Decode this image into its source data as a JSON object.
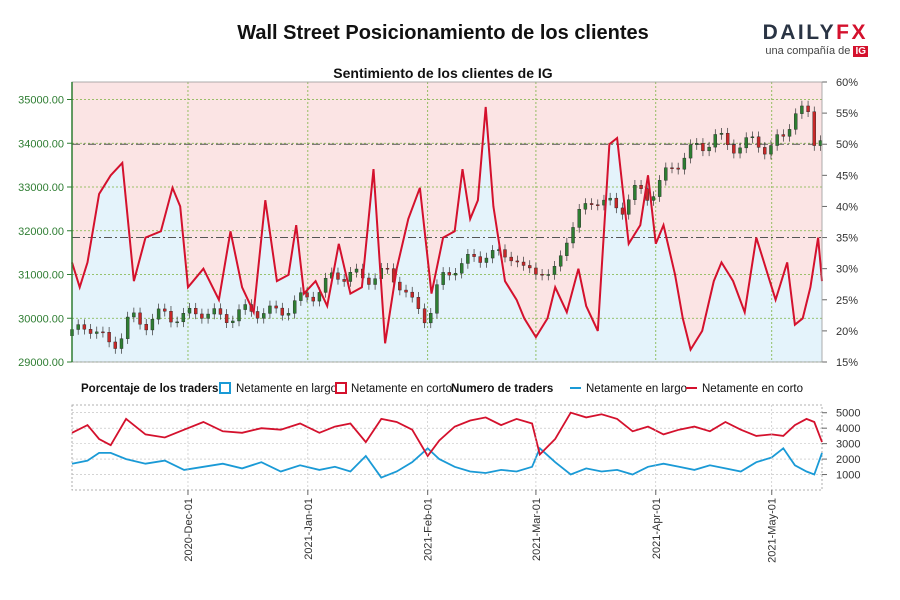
{
  "header": {
    "title": "Wall Street Posicionamiento de los clientes",
    "logo_main": "DAILY",
    "logo_fx": "FX",
    "logo_sub": "una compañía de",
    "logo_badge": "IG"
  },
  "colors": {
    "long_fill": "#e4f3fb",
    "short_fill": "#fbe4e4",
    "long_line": "#1a9ad6",
    "short_line": "#d4112d",
    "candle_up": "#2e7d32",
    "candle_down": "#c62828",
    "grid": "#7cb342",
    "axis_left": "#2e7d32",
    "price_ref": "#555555"
  },
  "chart_data": [
    {
      "type": "area",
      "title": "Sentimiento de los clientes de IG",
      "y_left": {
        "ticks": [
          "29000.00",
          "30000.00",
          "31000.00",
          "32000.00",
          "33000.00",
          "34000.00",
          "35000.00"
        ],
        "range": [
          29000,
          35400
        ]
      },
      "y_right": {
        "ticks": [
          "15%",
          "20%",
          "25%",
          "30%",
          "35%",
          "40%",
          "45%",
          "50%",
          "55%",
          "60%"
        ],
        "range": [
          15,
          60
        ]
      },
      "grid": true,
      "reference_lines": [
        50,
        35
      ],
      "x_range": [
        "2020-11-01",
        "2021-05-14"
      ],
      "net_long_pct": [
        [
          "2020-11-01",
          31
        ],
        [
          "2020-11-03",
          27
        ],
        [
          "2020-11-05",
          31
        ],
        [
          "2020-11-08",
          42
        ],
        [
          "2020-11-11",
          45
        ],
        [
          "2020-11-14",
          47
        ],
        [
          "2020-11-17",
          28
        ],
        [
          "2020-11-20",
          35
        ],
        [
          "2020-11-24",
          36
        ],
        [
          "2020-11-27",
          43
        ],
        [
          "2020-11-29",
          40
        ],
        [
          "2020-12-01",
          27
        ],
        [
          "2020-12-05",
          30
        ],
        [
          "2020-12-09",
          25
        ],
        [
          "2020-12-12",
          36
        ],
        [
          "2020-12-15",
          27
        ],
        [
          "2020-12-18",
          23
        ],
        [
          "2020-12-21",
          41
        ],
        [
          "2020-12-24",
          28
        ],
        [
          "2020-12-27",
          29
        ],
        [
          "2020-12-29",
          37
        ],
        [
          "2020-12-31",
          26
        ],
        [
          "2021-01-03",
          28
        ],
        [
          "2021-01-06",
          24
        ],
        [
          "2021-01-09",
          34
        ],
        [
          "2021-01-12",
          26
        ],
        [
          "2021-01-15",
          27
        ],
        [
          "2021-01-18",
          46
        ],
        [
          "2021-01-21",
          18
        ],
        [
          "2021-01-24",
          30
        ],
        [
          "2021-01-27",
          38
        ],
        [
          "2021-01-30",
          43
        ],
        [
          "2021-02-02",
          26
        ],
        [
          "2021-02-05",
          35
        ],
        [
          "2021-02-08",
          36
        ],
        [
          "2021-02-10",
          46
        ],
        [
          "2021-02-12",
          38
        ],
        [
          "2021-02-14",
          41
        ],
        [
          "2021-02-16",
          56
        ],
        [
          "2021-02-18",
          40
        ],
        [
          "2021-02-21",
          28
        ],
        [
          "2021-02-24",
          25
        ],
        [
          "2021-02-26",
          22
        ],
        [
          "2021-03-01",
          19
        ],
        [
          "2021-03-04",
          22
        ],
        [
          "2021-03-06",
          27
        ],
        [
          "2021-03-09",
          23
        ],
        [
          "2021-03-12",
          30
        ],
        [
          "2021-03-14",
          24
        ],
        [
          "2021-03-17",
          20
        ],
        [
          "2021-03-20",
          50
        ],
        [
          "2021-03-22",
          51
        ],
        [
          "2021-03-25",
          34
        ],
        [
          "2021-03-28",
          37
        ],
        [
          "2021-03-30",
          45
        ],
        [
          "2021-04-01",
          34
        ],
        [
          "2021-04-03",
          37
        ],
        [
          "2021-04-06",
          29
        ],
        [
          "2021-04-08",
          22
        ],
        [
          "2021-04-10",
          17
        ],
        [
          "2021-04-13",
          20
        ],
        [
          "2021-04-16",
          28
        ],
        [
          "2021-04-18",
          31
        ],
        [
          "2021-04-21",
          28
        ],
        [
          "2021-04-24",
          23
        ],
        [
          "2021-04-27",
          35
        ],
        [
          "2021-04-30",
          29
        ],
        [
          "2021-05-02",
          25
        ],
        [
          "2021-05-05",
          31
        ],
        [
          "2021-05-07",
          21
        ],
        [
          "2021-05-09",
          22
        ],
        [
          "2021-05-11",
          27
        ],
        [
          "2021-05-13",
          35
        ],
        [
          "2021-05-14",
          28
        ]
      ],
      "price_candles_note": "daily OHLC candles, price rising from about 29500 to 35000",
      "price_close": [
        [
          "2020-11-01",
          29600
        ],
        [
          "2020-11-05",
          29900
        ],
        [
          "2020-11-10",
          29400
        ],
        [
          "2020-11-13",
          29500
        ],
        [
          "2020-11-16",
          30000
        ],
        [
          "2020-11-20",
          29900
        ],
        [
          "2020-11-25",
          30100
        ],
        [
          "2020-11-30",
          30000
        ],
        [
          "2020-12-04",
          30200
        ],
        [
          "2020-12-09",
          30000
        ],
        [
          "2020-12-14",
          30100
        ],
        [
          "2020-12-18",
          30200
        ],
        [
          "2020-12-23",
          30100
        ],
        [
          "2020-12-28",
          30300
        ],
        [
          "2021-01-01",
          30500
        ],
        [
          "2021-01-05",
          30700
        ],
        [
          "2021-01-08",
          31000
        ],
        [
          "2021-01-12",
          31000
        ],
        [
          "2021-01-15",
          30900
        ],
        [
          "2021-01-19",
          31000
        ],
        [
          "2021-01-22",
          31000
        ],
        [
          "2021-01-25",
          30800
        ],
        [
          "2021-01-28",
          30300
        ],
        [
          "2021-02-01",
          30000
        ],
        [
          "2021-02-04",
          30800
        ],
        [
          "2021-02-08",
          31200
        ],
        [
          "2021-02-12",
          31300
        ],
        [
          "2021-02-16",
          31500
        ],
        [
          "2021-02-19",
          31400
        ],
        [
          "2021-02-23",
          31500
        ],
        [
          "2021-02-26",
          31000
        ],
        [
          "2021-03-02",
          31200
        ],
        [
          "2021-03-05",
          30800
        ],
        [
          "2021-03-09",
          31900
        ],
        [
          "2021-03-12",
          32300
        ],
        [
          "2021-03-16",
          32800
        ],
        [
          "2021-03-19",
          32600
        ],
        [
          "2021-03-23",
          32500
        ],
        [
          "2021-03-26",
          32900
        ],
        [
          "2021-03-30",
          32800
        ],
        [
          "2021-04-02",
          33100
        ],
        [
          "2021-04-06",
          33500
        ],
        [
          "2021-04-09",
          33800
        ],
        [
          "2021-04-13",
          33900
        ],
        [
          "2021-04-16",
          34200
        ],
        [
          "2021-04-20",
          33900
        ],
        [
          "2021-04-23",
          34000
        ],
        [
          "2021-04-27",
          34000
        ],
        [
          "2021-04-30",
          33900
        ],
        [
          "2021-05-04",
          34100
        ],
        [
          "2021-05-07",
          34800
        ],
        [
          "2021-05-10",
          34700
        ],
        [
          "2021-05-12",
          34000
        ],
        [
          "2021-05-14",
          34300
        ]
      ]
    },
    {
      "type": "line",
      "title": "Numero de traders",
      "legend_left": {
        "label": "Porcentaje de los traders",
        "long": "Netamente en largo",
        "short": "Netamente en corto"
      },
      "legend_right": {
        "label": "Numero de traders",
        "long": "Netamente en largo",
        "short": "Netamente en corto"
      },
      "y_ticks": [
        "1000",
        "2000",
        "3000",
        "4000",
        "5000"
      ],
      "y_range": [
        0,
        5500
      ],
      "x_ticks": [
        "2020-Dec-01",
        "2021-Jan-01",
        "2021-Feb-01",
        "2021-Mar-01",
        "2021-Apr-01",
        "2021-May-01"
      ],
      "series": [
        {
          "name": "Netamente en largo",
          "values": [
            [
              "2020-11-01",
              1700
            ],
            [
              "2020-11-05",
              1900
            ],
            [
              "2020-11-08",
              2400
            ],
            [
              "2020-11-11",
              2400
            ],
            [
              "2020-11-15",
              2000
            ],
            [
              "2020-11-20",
              1700
            ],
            [
              "2020-11-25",
              1900
            ],
            [
              "2020-11-30",
              1300
            ],
            [
              "2020-12-05",
              1500
            ],
            [
              "2020-12-10",
              1700
            ],
            [
              "2020-12-15",
              1400
            ],
            [
              "2020-12-20",
              1800
            ],
            [
              "2020-12-25",
              1200
            ],
            [
              "2020-12-30",
              1600
            ],
            [
              "2021-01-04",
              1300
            ],
            [
              "2021-01-08",
              1500
            ],
            [
              "2021-01-12",
              1200
            ],
            [
              "2021-01-16",
              2200
            ],
            [
              "2021-01-20",
              800
            ],
            [
              "2021-01-24",
              1200
            ],
            [
              "2021-01-28",
              1800
            ],
            [
              "2021-02-01",
              2700
            ],
            [
              "2021-02-04",
              2000
            ],
            [
              "2021-02-08",
              1500
            ],
            [
              "2021-02-12",
              1200
            ],
            [
              "2021-02-16",
              1100
            ],
            [
              "2021-02-20",
              1300
            ],
            [
              "2021-02-24",
              1200
            ],
            [
              "2021-02-28",
              1500
            ],
            [
              "2021-03-02",
              2700
            ],
            [
              "2021-03-06",
              1800
            ],
            [
              "2021-03-10",
              1000
            ],
            [
              "2021-03-14",
              1400
            ],
            [
              "2021-03-18",
              1200
            ],
            [
              "2021-03-22",
              1300
            ],
            [
              "2021-03-26",
              1000
            ],
            [
              "2021-03-30",
              1500
            ],
            [
              "2021-04-03",
              1700
            ],
            [
              "2021-04-07",
              1500
            ],
            [
              "2021-04-11",
              1300
            ],
            [
              "2021-04-15",
              1600
            ],
            [
              "2021-04-19",
              1400
            ],
            [
              "2021-04-23",
              1200
            ],
            [
              "2021-04-27",
              1800
            ],
            [
              "2021-05-01",
              2100
            ],
            [
              "2021-05-04",
              2700
            ],
            [
              "2021-05-07",
              1600
            ],
            [
              "2021-05-10",
              1200
            ],
            [
              "2021-05-12",
              1000
            ],
            [
              "2021-05-14",
              2400
            ]
          ]
        },
        {
          "name": "Netamente en corto",
          "values": [
            [
              "2020-11-01",
              3700
            ],
            [
              "2020-11-05",
              4200
            ],
            [
              "2020-11-08",
              3300
            ],
            [
              "2020-11-11",
              2900
            ],
            [
              "2020-11-15",
              4600
            ],
            [
              "2020-11-20",
              3600
            ],
            [
              "2020-11-25",
              3400
            ],
            [
              "2020-11-30",
              3900
            ],
            [
              "2020-12-05",
              4400
            ],
            [
              "2020-12-10",
              3800
            ],
            [
              "2020-12-15",
              3700
            ],
            [
              "2020-12-20",
              4000
            ],
            [
              "2020-12-25",
              3900
            ],
            [
              "2020-12-30",
              4300
            ],
            [
              "2021-01-04",
              3700
            ],
            [
              "2021-01-08",
              4100
            ],
            [
              "2021-01-12",
              4300
            ],
            [
              "2021-01-16",
              3100
            ],
            [
              "2021-01-20",
              4600
            ],
            [
              "2021-01-24",
              4400
            ],
            [
              "2021-01-28",
              3900
            ],
            [
              "2021-02-01",
              2200
            ],
            [
              "2021-02-04",
              3200
            ],
            [
              "2021-02-08",
              4100
            ],
            [
              "2021-02-12",
              4500
            ],
            [
              "2021-02-16",
              4700
            ],
            [
              "2021-02-20",
              4200
            ],
            [
              "2021-02-24",
              4600
            ],
            [
              "2021-02-28",
              4300
            ],
            [
              "2021-03-02",
              2300
            ],
            [
              "2021-03-06",
              3300
            ],
            [
              "2021-03-10",
              5000
            ],
            [
              "2021-03-14",
              4700
            ],
            [
              "2021-03-18",
              4900
            ],
            [
              "2021-03-22",
              4600
            ],
            [
              "2021-03-26",
              3800
            ],
            [
              "2021-03-30",
              4100
            ],
            [
              "2021-04-03",
              3600
            ],
            [
              "2021-04-07",
              3900
            ],
            [
              "2021-04-11",
              4100
            ],
            [
              "2021-04-15",
              3800
            ],
            [
              "2021-04-19",
              4400
            ],
            [
              "2021-04-23",
              3900
            ],
            [
              "2021-04-27",
              3500
            ],
            [
              "2021-05-01",
              3600
            ],
            [
              "2021-05-04",
              3500
            ],
            [
              "2021-05-07",
              4200
            ],
            [
              "2021-05-10",
              4600
            ],
            [
              "2021-05-12",
              4400
            ],
            [
              "2021-05-14",
              3100
            ]
          ]
        }
      ]
    }
  ]
}
